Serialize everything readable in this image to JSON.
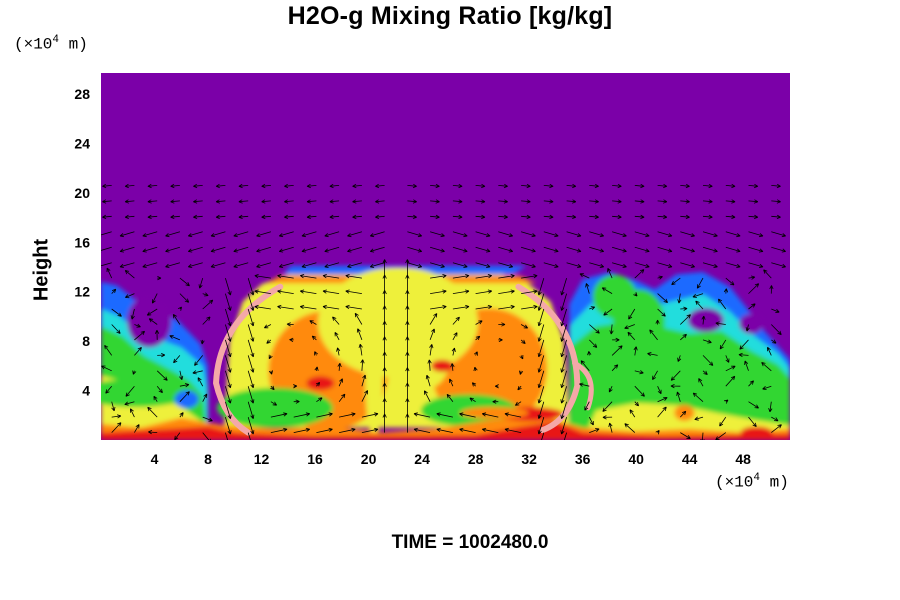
{
  "chart_data": {
    "type": "heatmap",
    "title": "H2O-g Mixing Ratio [kg/kg]",
    "ylabel": "Height",
    "xunit_prefix": "(×10",
    "xunit_exp": "4",
    "xunit_suffix": " m)",
    "yunit_prefix": "(×10",
    "yunit_exp": "4",
    "yunit_suffix": " m)",
    "footer": "TIME = 1002480.0",
    "xlim": [
      0,
      51.5
    ],
    "ylim": [
      0,
      29.7
    ],
    "xticks": [
      4,
      8,
      12,
      16,
      20,
      24,
      28,
      32,
      36,
      40,
      44,
      48
    ],
    "yticks": [
      4,
      8,
      12,
      16,
      20,
      24,
      28
    ],
    "background_color": "#7b00a8",
    "cloud_top": 14,
    "colors": {
      "dry": "#7b00a8",
      "blue": "#1e6bff",
      "cyan": "#22dddd",
      "green": "#30d630",
      "yellow": "#eef03a",
      "orange": "#ff8a10",
      "red": "#e81818",
      "pink": "#f4a8a8"
    }
  }
}
